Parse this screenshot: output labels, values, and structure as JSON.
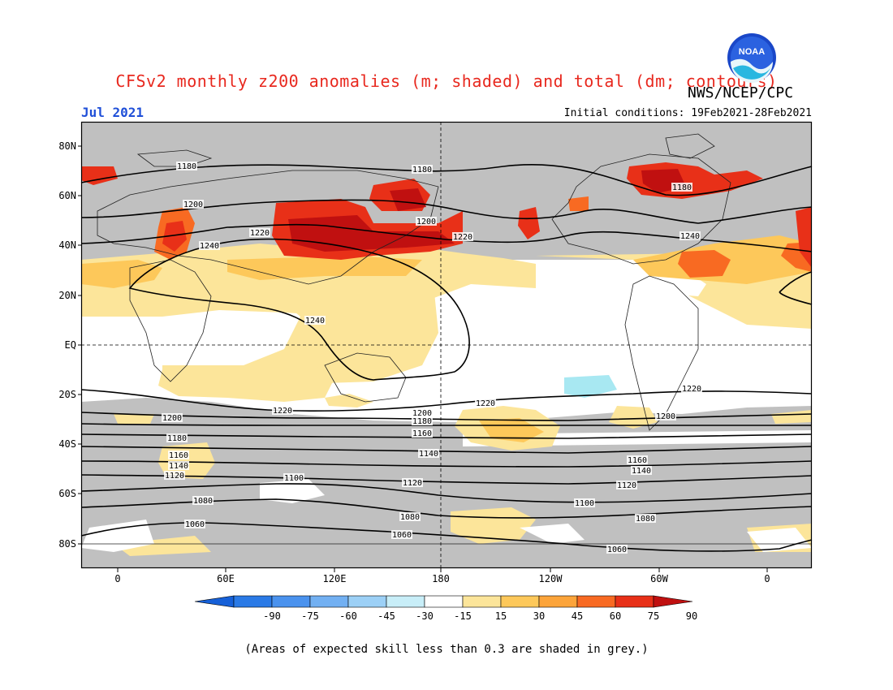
{
  "header": {
    "title": "CFSv2 monthly z200 anomalies (m; shaded) and total (dm; contours)",
    "org": "NWS/NCEP/CPC",
    "month": "Jul 2021",
    "initial_conditions": "Initial conditions: 19Feb2021-28Feb2021",
    "logo_text": "NOAA"
  },
  "map": {
    "lon_labels": [
      "0",
      "60E",
      "120E",
      "180",
      "120W",
      "60W",
      "0"
    ],
    "lat_labels": [
      "80N",
      "60N",
      "40N",
      "20N",
      "EQ",
      "20S",
      "40S",
      "60S",
      "80S"
    ],
    "contour_labels": [
      "1060",
      "1060",
      "1060",
      "1080",
      "1080",
      "1080",
      "1100",
      "1100",
      "1120",
      "1120",
      "1120",
      "1140",
      "1140",
      "1140",
      "1160",
      "1160",
      "1160",
      "1180",
      "1180",
      "1180",
      "1180",
      "1180",
      "1200",
      "1200",
      "1200",
      "1200",
      "1200",
      "1220",
      "1220",
      "1220",
      "1220",
      "1220",
      "1240",
      "1240",
      "1240"
    ]
  },
  "colorbar": {
    "labels": [
      "-90",
      "-75",
      "-60",
      "-45",
      "-30",
      "-15",
      "15",
      "30",
      "45",
      "60",
      "75",
      "90"
    ],
    "colors": [
      "#1660d8",
      "#2a7ae6",
      "#4a92ee",
      "#72b0f2",
      "#9cd0f6",
      "#c8eef8",
      "#ffffff",
      "#fce59a",
      "#fdc85a",
      "#fca43a",
      "#f86a22",
      "#e83018",
      "#c01010"
    ]
  },
  "footnote": "(Areas of expected skill less than 0.3 are shaded in grey.)"
}
